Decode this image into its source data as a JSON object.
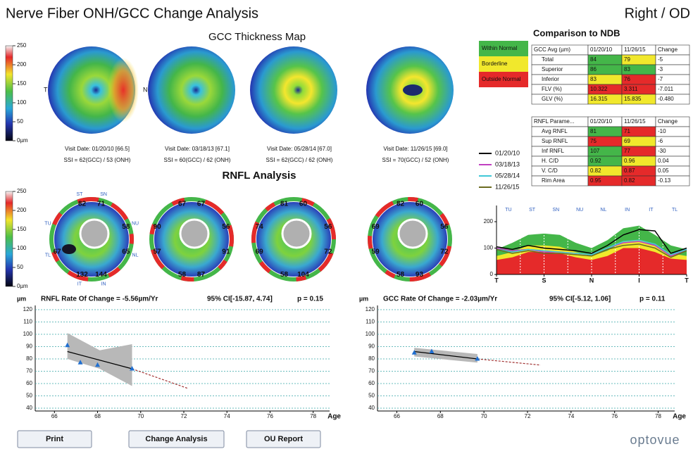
{
  "header": {
    "title": "Nerve Fiber ONH/GCC Change Analysis",
    "eye": "Right / OD"
  },
  "gcc_map": {
    "title": "GCC Thickness Map",
    "scale_labels": [
      "250",
      "200",
      "150",
      "100",
      "50",
      "0µm"
    ],
    "temporal": "T",
    "nasal": "N",
    "visits": [
      {
        "date": "Visit Date: 01/20/10 [66.5]",
        "ssi": "SSI = 62(GCC) / 53 (ONH)"
      },
      {
        "date": "Visit Date: 03/18/13 [67.1]",
        "ssi": "SSI = 60(GCC) / 62 (ONH)"
      },
      {
        "date": "Visit Date: 05/28/14 [67.0]",
        "ssi": "SSI = 62(GCC) / 62 (ONH)"
      },
      {
        "date": "Visit Date: 11/26/15 [69.0]",
        "ssi": "SSI = 70(GCC) / 52 (ONH)"
      }
    ]
  },
  "rnfl_map": {
    "title": "RNFL Analysis",
    "scale_labels": [
      "250",
      "200",
      "150",
      "100",
      "50",
      "0µm"
    ],
    "sector_names": [
      "ST",
      "SN",
      "NU",
      "NL",
      "IN",
      "IT",
      "TL",
      "TU"
    ],
    "maps": [
      [
        "82",
        "71",
        "58",
        "65",
        "144",
        "132",
        "67",
        null
      ],
      [
        "67",
        "67",
        "56",
        "91",
        "87",
        "58",
        "57",
        "90"
      ],
      [
        "81",
        "60",
        "56",
        "72",
        "104",
        "58",
        "69",
        "74"
      ],
      [
        "82",
        "60",
        "56",
        "72",
        "93",
        "58",
        "59",
        "69"
      ]
    ]
  },
  "ndb": {
    "title": "Comparison to NDB",
    "legend": [
      {
        "label": "Within Normal",
        "color": "#44b649"
      },
      {
        "label": "Borderline",
        "color": "#f1e82c"
      },
      {
        "label": "Outside Normal",
        "color": "#e52a2a"
      }
    ],
    "gcc_table": {
      "header": [
        "GCC Avg (µm)",
        "01/20/10",
        "11/26/15",
        "Change"
      ],
      "rows": [
        [
          "Total",
          "84",
          "79",
          "-5"
        ],
        [
          "Superior",
          "86",
          "83",
          "-3"
        ],
        [
          "Inferior",
          "83",
          "76",
          "-7"
        ],
        [
          "FLV (%)",
          "10.322",
          "3.311",
          "-7.011"
        ],
        [
          "GLV (%)",
          "16.315",
          "15.835",
          "-0.480"
        ]
      ],
      "status": [
        [
          0,
          1
        ],
        [
          0,
          0
        ],
        [
          1,
          2
        ],
        [
          2,
          2
        ],
        [
          1,
          1
        ]
      ]
    },
    "rnfl_table": {
      "header": [
        "RNFL Parame...",
        "01/20/10",
        "11/26/15",
        "Change"
      ],
      "rows": [
        [
          "Avg RNFL",
          "81",
          "71",
          "-10"
        ],
        [
          "Sup RNFL",
          "75",
          "69",
          "-6"
        ],
        [
          "Inf RNFL",
          "107",
          "77",
          "-30"
        ],
        [
          "H. C/D",
          "0.92",
          "0.96",
          "0.04"
        ],
        [
          "V. C/D",
          "0.82",
          "0.87",
          "0.05"
        ],
        [
          "Rim Area",
          "0.95",
          "0.82",
          "-0.13"
        ]
      ],
      "status": [
        [
          0,
          2
        ],
        [
          2,
          1
        ],
        [
          0,
          2
        ],
        [
          0,
          1
        ],
        [
          1,
          2
        ],
        [
          2,
          2
        ]
      ]
    }
  },
  "chart_data": [
    {
      "type": "line",
      "xlim": [
        0,
        12
      ],
      "ylim": [
        0,
        240
      ],
      "yticks": [
        0,
        100,
        200
      ],
      "xticks": [
        {
          "value": 0,
          "label": "T"
        },
        {
          "value": 3,
          "label": "S"
        },
        {
          "value": 6,
          "label": "N"
        },
        {
          "value": 9,
          "label": "I"
        },
        {
          "value": 12,
          "label": "T"
        }
      ],
      "sector_ticks": [
        {
          "value": 0.75,
          "label": "TU"
        },
        {
          "value": 2.25,
          "label": "ST"
        },
        {
          "value": 3.75,
          "label": "SN"
        },
        {
          "value": 5.25,
          "label": "NU"
        },
        {
          "value": 6.75,
          "label": "NL"
        },
        {
          "value": 8.25,
          "label": "IN"
        },
        {
          "value": 9.75,
          "label": "IT"
        },
        {
          "value": 11.25,
          "label": "TL"
        }
      ],
      "x": [
        0,
        1,
        2,
        3,
        4,
        5,
        6,
        7,
        8,
        9,
        10,
        11,
        12
      ],
      "bands": [
        {
          "color": "#44b649",
          "values": [
            95,
            120,
            150,
            155,
            150,
            120,
            100,
            130,
            175,
            185,
            150,
            110,
            95
          ]
        },
        {
          "color": "#f1e82c",
          "values": [
            70,
            85,
            110,
            110,
            105,
            85,
            70,
            90,
            125,
            130,
            110,
            80,
            70
          ]
        },
        {
          "color": "#e52a2a",
          "values": [
            55,
            65,
            85,
            85,
            80,
            65,
            55,
            70,
            100,
            100,
            85,
            60,
            55
          ]
        }
      ],
      "series": [
        {
          "name": "01/20/10",
          "color": "#000000",
          "values": [
            105,
            95,
            110,
            100,
            95,
            90,
            80,
            110,
            150,
            170,
            165,
            80,
            100
          ]
        },
        {
          "name": "03/18/13",
          "color": "#c040c0",
          "values": [
            100,
            90,
            95,
            85,
            85,
            80,
            75,
            100,
            120,
            125,
            110,
            70,
            95
          ]
        },
        {
          "name": "05/28/14",
          "color": "#40c8d8",
          "values": [
            95,
            85,
            95,
            90,
            85,
            80,
            75,
            100,
            125,
            130,
            115,
            75,
            95
          ]
        },
        {
          "name": "11/26/15",
          "color": "#6b6b20",
          "values": [
            95,
            80,
            90,
            80,
            80,
            75,
            70,
            95,
            110,
            115,
            100,
            65,
            90
          ]
        }
      ]
    },
    {
      "type": "scatter",
      "title": "RNFL Rate Of Change = -5.56µm/Yr",
      "ci": "95% CI[-15.87, 4.74]",
      "p": "p = 0.15",
      "y_label": "µm",
      "x_label": "Age",
      "xlim": [
        65.5,
        78.5
      ],
      "ylim": [
        40,
        120
      ],
      "xticks": [
        66,
        68,
        70,
        72,
        74,
        76,
        78
      ],
      "yticks": [
        40,
        50,
        60,
        70,
        80,
        90,
        100,
        110,
        120
      ],
      "grid": true,
      "color": "#1f6fd1",
      "x": [
        66.6,
        67.2,
        68.0,
        69.6
      ],
      "values": [
        91,
        77,
        75,
        72
      ],
      "trend": {
        "x": [
          66.6,
          69.6,
          72.2
        ],
        "values": [
          86,
          72,
          56
        ]
      },
      "band": {
        "x": [
          66.6,
          68.1,
          69.6
        ],
        "upper": [
          101,
          87,
          92
        ],
        "lower": [
          80,
          72,
          58
        ]
      }
    },
    {
      "type": "scatter",
      "title": "GCC Rate Of Change = -2.03µm/Yr",
      "ci": "95% CI[-5.12, 1.06]",
      "p": "p = 0.11",
      "y_label": "µm",
      "x_label": "Age",
      "xlim": [
        65.5,
        78.5
      ],
      "ylim": [
        40,
        120
      ],
      "xticks": [
        66,
        68,
        70,
        72,
        74,
        76,
        78
      ],
      "yticks": [
        40,
        50,
        60,
        70,
        80,
        90,
        100,
        110,
        120
      ],
      "grid": true,
      "color": "#1f6fd1",
      "x": [
        66.8,
        67.6,
        69.7
      ],
      "values": [
        85,
        86,
        80
      ],
      "trend": {
        "x": [
          66.8,
          69.7,
          72.6
        ],
        "values": [
          86,
          80,
          75
        ]
      },
      "band": {
        "x": [
          66.8,
          69.7
        ],
        "upper": [
          89,
          84
        ],
        "lower": [
          82,
          77
        ]
      }
    }
  ],
  "buttons": [
    "Print",
    "Change Analysis",
    "OU Report"
  ],
  "logo": "optovue"
}
